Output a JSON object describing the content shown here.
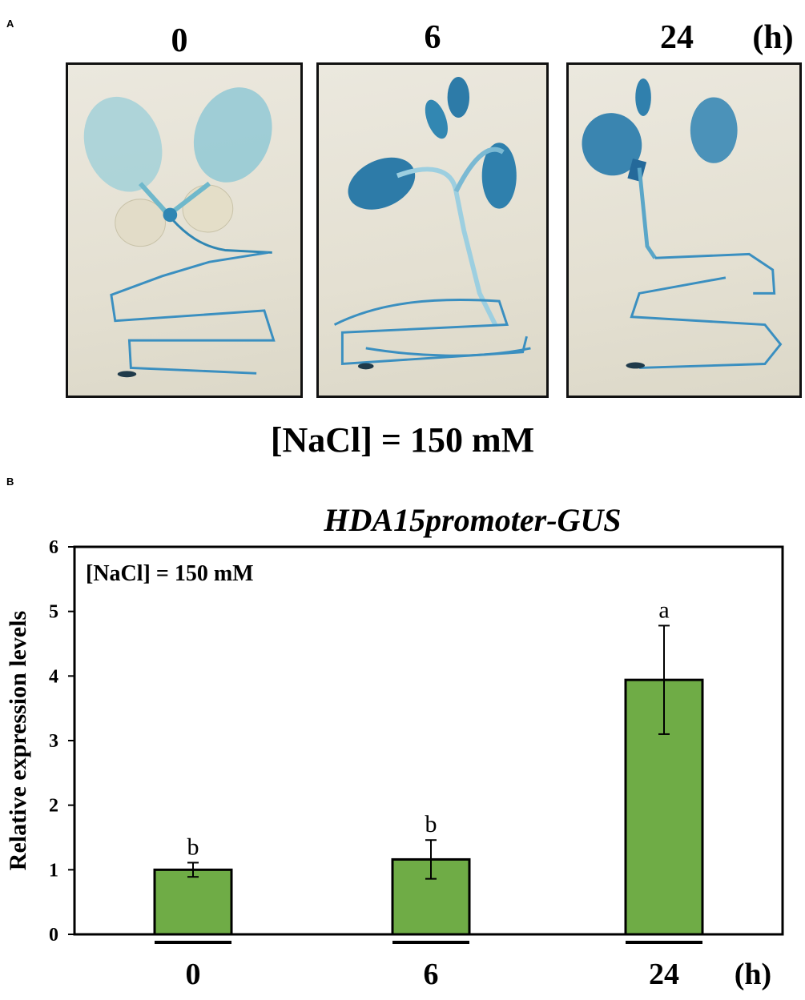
{
  "panel_labels": {
    "a": "A",
    "b": "B"
  },
  "panel_a": {
    "time_labels": [
      "0",
      "6",
      "24"
    ],
    "unit": "(h)",
    "treatment": "[NaCl] = 150 mM"
  },
  "chart_data": {
    "type": "bar",
    "title": "HDA15promoter-GUS",
    "annotation": "[NaCl] = 150 mM",
    "ylabel": "Relative expression levels",
    "xlabel": "",
    "x_unit": "(h)",
    "categories": [
      "0",
      "6",
      "24"
    ],
    "values": [
      1.0,
      1.16,
      3.94
    ],
    "errors": [
      0.11,
      0.3,
      0.84
    ],
    "significance_letters": [
      "b",
      "b",
      "a"
    ],
    "ylim": [
      0,
      6
    ],
    "yticks": [
      0,
      1,
      2,
      3,
      4,
      5,
      6
    ],
    "grid": false,
    "bar_color": "#6fac46"
  }
}
